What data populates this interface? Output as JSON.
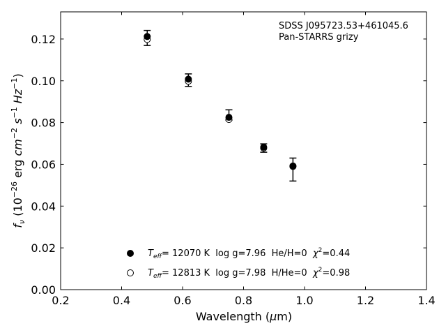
{
  "chart_data": {
    "type": "scatter",
    "xlabel": "Wavelength (μm)",
    "ylabel": "fν (10⁻²⁶ erg cm⁻² s⁻¹ Hz⁻¹)",
    "xlim": [
      0.2,
      1.4
    ],
    "ylim": [
      0.0,
      0.133
    ],
    "x_ticks": [
      0.2,
      0.4,
      0.6,
      0.8,
      1.0,
      1.2,
      1.4
    ],
    "x_tick_labels": [
      "0.2",
      "0.4",
      "0.6",
      "0.8",
      "1.0",
      "1.2",
      "1.4"
    ],
    "y_ticks": [
      0.0,
      0.02,
      0.04,
      0.06,
      0.08,
      0.1,
      0.12
    ],
    "y_tick_labels": [
      "0.00",
      "0.02",
      "0.04",
      "0.06",
      "0.08",
      "0.10",
      "0.12"
    ],
    "grid": false,
    "annotations": [
      "SDSS J095723.53+461045.6",
      "Pan-STARRS grizy"
    ],
    "observed": {
      "x": [
        0.484,
        0.619,
        0.752,
        0.866,
        0.962
      ],
      "y": [
        0.1205,
        0.1003,
        0.0836,
        0.0678,
        0.0575
      ],
      "yerr": [
        0.0036,
        0.003,
        0.0025,
        0.002,
        0.0055
      ]
    },
    "series": [
      {
        "marker": "filled",
        "x": [
          0.484,
          0.619,
          0.752,
          0.866,
          0.962
        ],
        "y": [
          0.1212,
          0.1008,
          0.0825,
          0.0682,
          0.059
        ]
      },
      {
        "marker": "open",
        "x": [
          0.484,
          0.619,
          0.752,
          0.866,
          0.962
        ],
        "y": [
          0.1198,
          0.0998,
          0.0815,
          0.0678,
          0.0592
        ]
      }
    ],
    "legend": {
      "placement": "lower-center",
      "entries": [
        {
          "marker": "filled",
          "teff_symbol": "T",
          "teff_sub": "eff",
          "text": "= 12070 K  log g=7.96  He/H=0  ",
          "chi_symbol": "χ",
          "chi_sup": "2",
          "chi_value": "=0.44"
        },
        {
          "marker": "open",
          "teff_symbol": "T",
          "teff_sub": "eff",
          "text": "= 12813 K  log g=7.98  H/He=0  ",
          "chi_symbol": "χ",
          "chi_sup": "2",
          "chi_value": "=0.98"
        }
      ]
    }
  }
}
